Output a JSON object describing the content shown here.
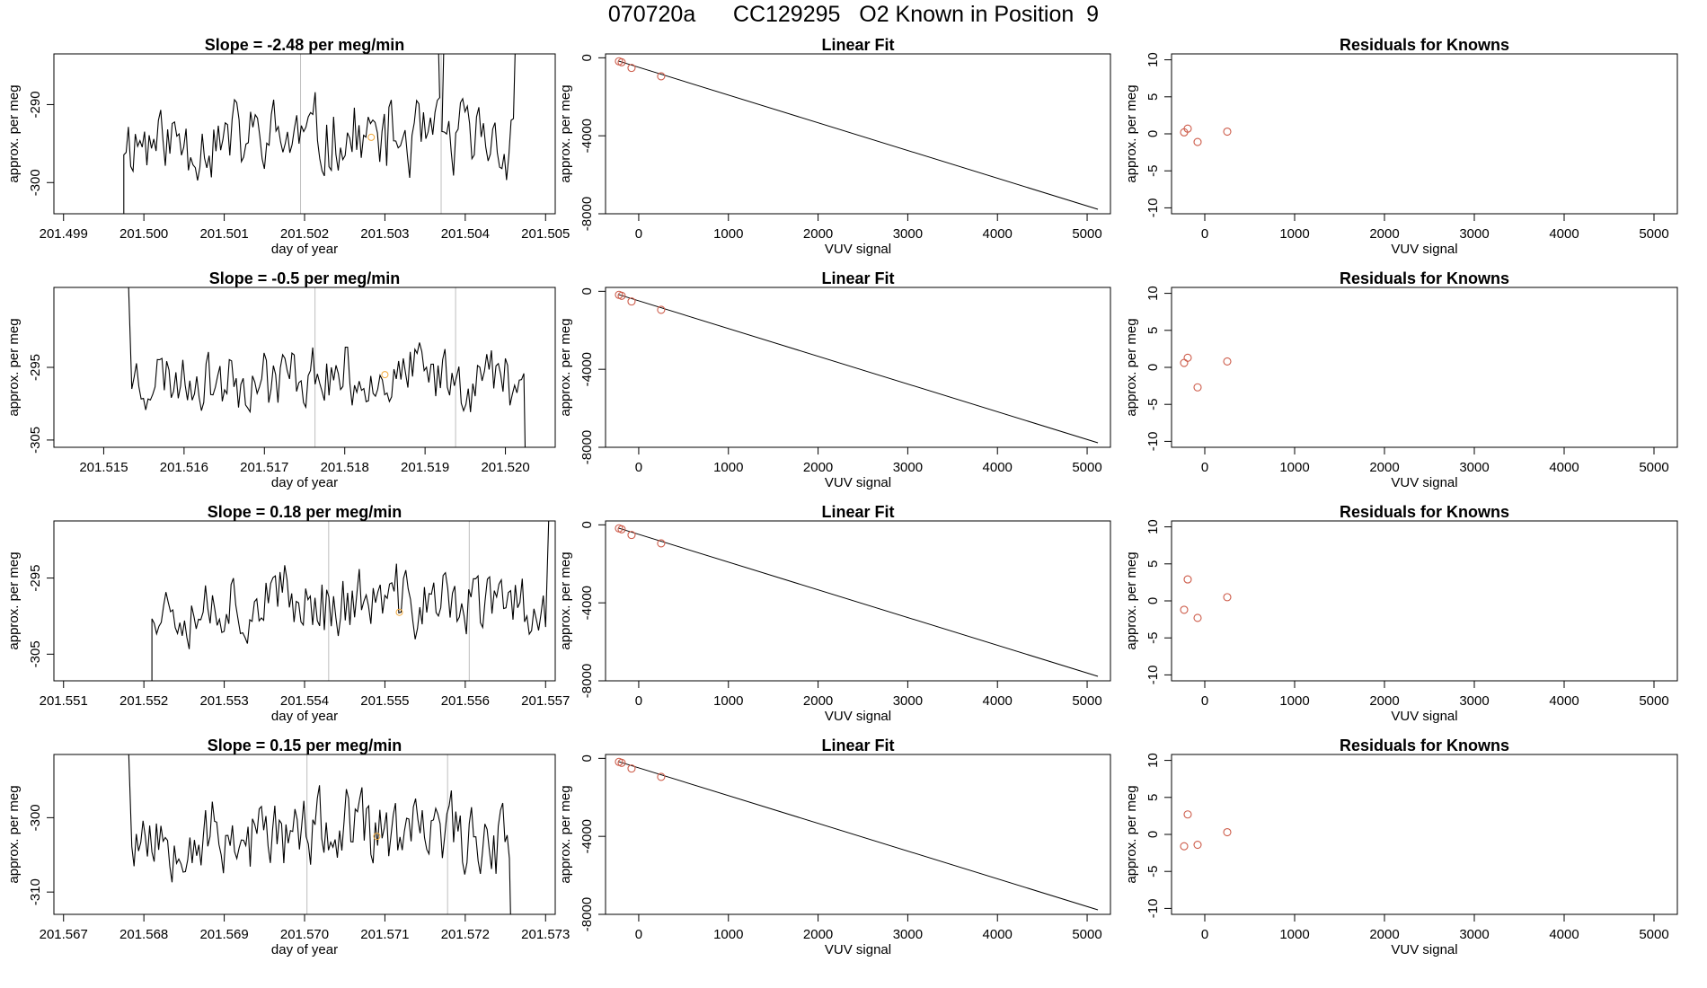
{
  "main_title": "070720a      CC129295   O2 Known in Position  9",
  "colors": {
    "trace": "#000000",
    "grid": "#bebebe",
    "point": "#cd5c4a",
    "unknown": "#f2a93b"
  },
  "chart_data": [
    {
      "type": "line",
      "row": 0,
      "panel": "time-series",
      "title": "Slope =  -2.48  per meg/min",
      "xlabel": "day of year",
      "ylabel": "approx. per meg",
      "xlim": [
        201.49888,
        201.50512
      ],
      "ylim": [
        -304.0,
        -283.5
      ],
      "xticks": [
        "201.499",
        "201.500",
        "201.501",
        "201.502",
        "201.503",
        "201.504",
        "201.505"
      ],
      "yticks": [
        "-290",
        "-300"
      ],
      "ytick_values": [
        -290,
        -300
      ],
      "vlines": [
        201.50195,
        201.5037
      ],
      "x_start": 201.49975,
      "x_end": 201.5046,
      "y_range": [
        -303.0,
        -286.0
      ],
      "open_end_x": 201.50463,
      "spike_x": 201.5037,
      "unknown_point": {
        "x": 201.50283,
        "y": -294.2
      },
      "seed": 11
    },
    {
      "type": "scatter",
      "row": 0,
      "panel": "linear-fit",
      "title": "Linear Fit",
      "xlabel": "VUV signal",
      "ylabel": "approx. per meg",
      "xlim": [
        -370,
        5260
      ],
      "ylim": [
        -8000,
        200
      ],
      "xticks": [
        "0",
        "1000",
        "2000",
        "3000",
        "4000",
        "5000"
      ],
      "xtick_values": [
        0,
        1000,
        2000,
        3000,
        4000,
        5000
      ],
      "yticks": [
        "0",
        "-4000",
        "-8000"
      ],
      "ytick_values": [
        0,
        -4000,
        -8000
      ],
      "points": [
        {
          "x": -220,
          "y": -180
        },
        {
          "x": -190,
          "y": -230
        },
        {
          "x": -80,
          "y": -520
        },
        {
          "x": 250,
          "y": -950
        }
      ],
      "fit_line": {
        "x0": -230,
        "y0": -160,
        "x1": 5120,
        "y1": -7770
      }
    },
    {
      "type": "scatter",
      "row": 0,
      "panel": "residuals",
      "title": "Residuals for Knowns",
      "xlabel": "VUV signal",
      "ylabel": "approx. per meg",
      "xlim": [
        -370,
        5260
      ],
      "ylim": [
        -10.8,
        10.8
      ],
      "xticks": [
        "0",
        "1000",
        "2000",
        "3000",
        "4000",
        "5000"
      ],
      "xtick_values": [
        0,
        1000,
        2000,
        3000,
        4000,
        5000
      ],
      "yticks": [
        "10",
        "5",
        "0",
        "-5",
        "-10"
      ],
      "ytick_values": [
        10,
        5,
        0,
        -5,
        -10
      ],
      "points": [
        {
          "x": -230,
          "y": 0.2
        },
        {
          "x": -190,
          "y": 0.7
        },
        {
          "x": -80,
          "y": -1.1
        },
        {
          "x": 250,
          "y": 0.3
        }
      ]
    },
    {
      "type": "line",
      "row": 1,
      "panel": "time-series",
      "title": "Slope =  -0.5  per meg/min",
      "xlabel": "day of year",
      "ylabel": "approx. per meg",
      "xlim": [
        201.51438,
        201.52062
      ],
      "ylim": [
        -306.0,
        -284.0
      ],
      "xticks": [
        "201.515",
        "201.516",
        "201.517",
        "201.518",
        "201.519",
        "201.520"
      ],
      "yticks": [
        "-295",
        "-305"
      ],
      "ytick_values": [
        -295,
        -305
      ],
      "vlines": [
        201.51763,
        201.51938
      ],
      "x_start": 201.51535,
      "x_end": 201.52023,
      "y_range": [
        -303.5,
        -289.0
      ],
      "open_start": true,
      "unknown_point": {
        "x": 201.5185,
        "y": -296.0
      },
      "seed": 23
    },
    {
      "type": "scatter",
      "row": 1,
      "panel": "linear-fit",
      "title": "Linear Fit",
      "xlabel": "VUV signal",
      "ylabel": "approx. per meg",
      "xlim": [
        -370,
        5260
      ],
      "ylim": [
        -8000,
        200
      ],
      "xticks": [
        "0",
        "1000",
        "2000",
        "3000",
        "4000",
        "5000"
      ],
      "xtick_values": [
        0,
        1000,
        2000,
        3000,
        4000,
        5000
      ],
      "yticks": [
        "0",
        "-4000",
        "-8000"
      ],
      "ytick_values": [
        0,
        -4000,
        -8000
      ],
      "points": [
        {
          "x": -220,
          "y": -180
        },
        {
          "x": -190,
          "y": -230
        },
        {
          "x": -80,
          "y": -520
        },
        {
          "x": 250,
          "y": -950
        }
      ],
      "fit_line": {
        "x0": -230,
        "y0": -160,
        "x1": 5120,
        "y1": -7770
      }
    },
    {
      "type": "scatter",
      "row": 1,
      "panel": "residuals",
      "title": "Residuals for Knowns",
      "xlabel": "VUV signal",
      "ylabel": "approx. per meg",
      "xlim": [
        -370,
        5260
      ],
      "ylim": [
        -10.8,
        10.8
      ],
      "xticks": [
        "0",
        "1000",
        "2000",
        "3000",
        "4000",
        "5000"
      ],
      "xtick_values": [
        0,
        1000,
        2000,
        3000,
        4000,
        5000
      ],
      "yticks": [
        "10",
        "5",
        "0",
        "-5",
        "-10"
      ],
      "ytick_values": [
        10,
        5,
        0,
        -5,
        -10
      ],
      "points": [
        {
          "x": -230,
          "y": 0.6
        },
        {
          "x": -190,
          "y": 1.3
        },
        {
          "x": -80,
          "y": -2.7
        },
        {
          "x": 250,
          "y": 0.8
        }
      ]
    },
    {
      "type": "line",
      "row": 2,
      "panel": "time-series",
      "title": "Slope =  0.18  per meg/min",
      "xlabel": "day of year",
      "ylabel": "approx. per meg",
      "xlim": [
        201.55088,
        201.55712
      ],
      "ylim": [
        -308.5,
        -287.5
      ],
      "xticks": [
        "201.551",
        "201.552",
        "201.553",
        "201.554",
        "201.555",
        "201.556",
        "201.557"
      ],
      "yticks": [
        "-295",
        "-305"
      ],
      "ytick_values": [
        -295,
        -305
      ],
      "vlines": [
        201.5543,
        201.55605
      ],
      "x_start": 201.5521,
      "x_end": 201.557,
      "y_range": [
        -306.0,
        -290.5
      ],
      "open_end_x": 201.55705,
      "unknown_point": {
        "x": 201.55518,
        "y": -299.5
      },
      "seed": 37
    },
    {
      "type": "scatter",
      "row": 2,
      "panel": "linear-fit",
      "title": "Linear Fit",
      "xlabel": "VUV signal",
      "ylabel": "approx. per meg",
      "xlim": [
        -370,
        5260
      ],
      "ylim": [
        -8000,
        200
      ],
      "xticks": [
        "0",
        "1000",
        "2000",
        "3000",
        "4000",
        "5000"
      ],
      "xtick_values": [
        0,
        1000,
        2000,
        3000,
        4000,
        5000
      ],
      "yticks": [
        "0",
        "-4000",
        "-8000"
      ],
      "ytick_values": [
        0,
        -4000,
        -8000
      ],
      "points": [
        {
          "x": -220,
          "y": -180
        },
        {
          "x": -190,
          "y": -230
        },
        {
          "x": -80,
          "y": -520
        },
        {
          "x": 250,
          "y": -950
        }
      ],
      "fit_line": {
        "x0": -230,
        "y0": -160,
        "x1": 5120,
        "y1": -7770
      }
    },
    {
      "type": "scatter",
      "row": 2,
      "panel": "residuals",
      "title": "Residuals for Knowns",
      "xlabel": "VUV signal",
      "ylabel": "approx. per meg",
      "xlim": [
        -370,
        5260
      ],
      "ylim": [
        -10.8,
        10.8
      ],
      "xticks": [
        "0",
        "1000",
        "2000",
        "3000",
        "4000",
        "5000"
      ],
      "xtick_values": [
        0,
        1000,
        2000,
        3000,
        4000,
        5000
      ],
      "yticks": [
        "10",
        "5",
        "0",
        "-5",
        "-10"
      ],
      "ytick_values": [
        10,
        5,
        0,
        -5,
        -10
      ],
      "points": [
        {
          "x": -230,
          "y": -1.2
        },
        {
          "x": -190,
          "y": 2.9
        },
        {
          "x": -80,
          "y": -2.3
        },
        {
          "x": 250,
          "y": 0.5
        }
      ]
    },
    {
      "type": "line",
      "row": 3,
      "panel": "time-series",
      "title": "Slope =  0.15  per meg/min",
      "xlabel": "day of year",
      "ylabel": "approx. per meg",
      "xlim": [
        201.56688,
        201.57312
      ],
      "ylim": [
        -313.0,
        -291.5
      ],
      "xticks": [
        "201.567",
        "201.568",
        "201.569",
        "201.570",
        "201.571",
        "201.572",
        "201.573"
      ],
      "yticks": [
        "-300",
        "-310"
      ],
      "ytick_values": [
        -300,
        -310
      ],
      "vlines": [
        201.57003,
        201.57178
      ],
      "x_start": 201.56785,
      "x_end": 201.57255,
      "y_range": [
        -311.0,
        -293.5
      ],
      "open_start": true,
      "unknown_point": {
        "x": 201.5709,
        "y": -302.5
      },
      "seed": 53
    },
    {
      "type": "scatter",
      "row": 3,
      "panel": "linear-fit",
      "title": "Linear Fit",
      "xlabel": "VUV signal",
      "ylabel": "approx. per meg",
      "xlim": [
        -370,
        5260
      ],
      "ylim": [
        -8000,
        200
      ],
      "xticks": [
        "0",
        "1000",
        "2000",
        "3000",
        "4000",
        "5000"
      ],
      "xtick_values": [
        0,
        1000,
        2000,
        3000,
        4000,
        5000
      ],
      "yticks": [
        "0",
        "-4000",
        "-8000"
      ],
      "ytick_values": [
        0,
        -4000,
        -8000
      ],
      "points": [
        {
          "x": -220,
          "y": -180
        },
        {
          "x": -190,
          "y": -230
        },
        {
          "x": -80,
          "y": -520
        },
        {
          "x": 250,
          "y": -950
        }
      ],
      "fit_line": {
        "x0": -230,
        "y0": -160,
        "x1": 5120,
        "y1": -7770
      }
    },
    {
      "type": "scatter",
      "row": 3,
      "panel": "residuals",
      "title": "Residuals for Knowns",
      "xlabel": "VUV signal",
      "ylabel": "approx. per meg",
      "xlim": [
        -370,
        5260
      ],
      "ylim": [
        -10.8,
        10.8
      ],
      "xticks": [
        "0",
        "1000",
        "2000",
        "3000",
        "4000",
        "5000"
      ],
      "xtick_values": [
        0,
        1000,
        2000,
        3000,
        4000,
        5000
      ],
      "yticks": [
        "10",
        "5",
        "0",
        "-5",
        "-10"
      ],
      "ytick_values": [
        10,
        5,
        0,
        -5,
        -10
      ],
      "points": [
        {
          "x": -230,
          "y": -1.6
        },
        {
          "x": -190,
          "y": 2.7
        },
        {
          "x": -80,
          "y": -1.4
        },
        {
          "x": 250,
          "y": 0.3
        }
      ]
    }
  ]
}
